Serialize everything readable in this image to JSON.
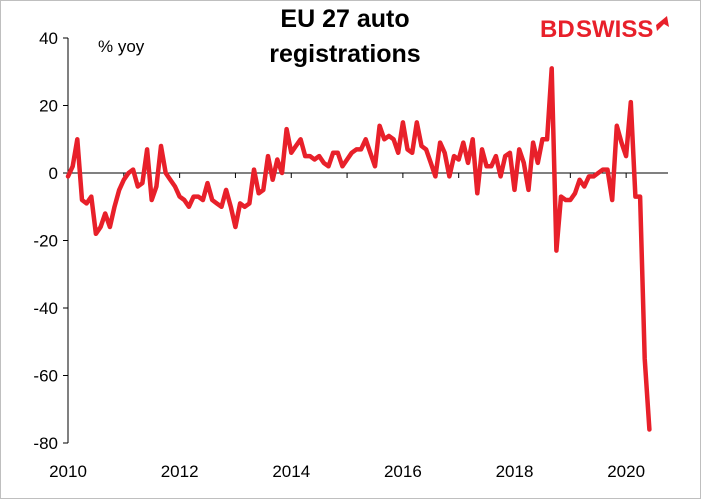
{
  "brand": {
    "logo_bd": "BD",
    "logo_swiss": "SWISS",
    "logo_color": "#e8202a"
  },
  "chart_data": {
    "type": "line",
    "title_line1": "EU 27 auto",
    "title_line2": "registrations",
    "unit_label": "% yoy",
    "xlabel": "",
    "ylabel": "",
    "x_ticks": [
      "2010",
      "2012",
      "2014",
      "2016",
      "2018",
      "2020"
    ],
    "y_ticks": [
      40,
      20,
      0,
      -20,
      -40,
      -60,
      -80
    ],
    "xlim": [
      2010.0,
      2020.75
    ],
    "ylim": [
      -80,
      40
    ],
    "grid": false,
    "legend": "none",
    "series": [
      {
        "color": "#e8202a",
        "x_start": 2010.0,
        "step_months": 1,
        "values": [
          -1,
          2,
          10,
          -8,
          -9,
          -7,
          -18,
          -16,
          -12,
          -16,
          -10,
          -5,
          -2,
          0,
          1,
          -4,
          -3,
          7,
          -8,
          -4,
          8,
          0,
          -2,
          -4,
          -7,
          -8,
          -10,
          -7,
          -7,
          -8,
          -3,
          -8,
          -9,
          -10,
          -5,
          -10,
          -16,
          -9,
          -10,
          -9,
          1,
          -6,
          -5,
          5,
          -2,
          4,
          0,
          13,
          6,
          8,
          10,
          5,
          5,
          4,
          5,
          3,
          2,
          6,
          6,
          2,
          4,
          6,
          7,
          7,
          10,
          6,
          2,
          14,
          10,
          11,
          10,
          6,
          15,
          7,
          6,
          15,
          8,
          7,
          3,
          -1,
          9,
          6,
          -1,
          5,
          4,
          9,
          3,
          10,
          -6,
          7,
          2,
          2,
          5,
          -1,
          5,
          6,
          -5,
          7,
          3,
          -5,
          9,
          3,
          10,
          10,
          31,
          -23,
          -7,
          -8,
          -8,
          -6,
          -2,
          -4,
          -1,
          -1,
          0,
          1,
          1,
          -8,
          14,
          9,
          5,
          21,
          -7,
          -7,
          -55,
          -76
        ]
      }
    ]
  }
}
